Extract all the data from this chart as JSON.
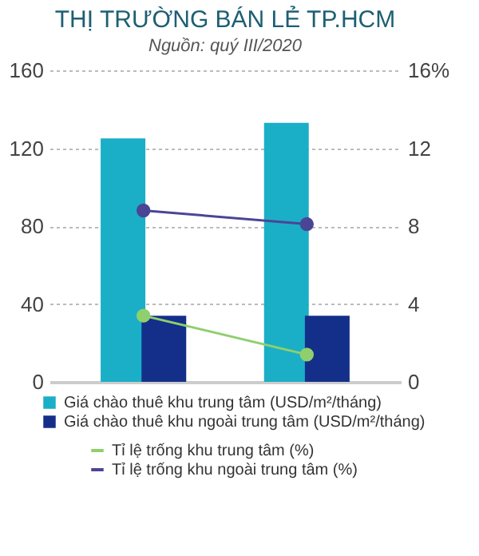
{
  "chart_data": {
    "type": "bar",
    "title": "THỊ TRƯỜNG BÁN LẺ TP.HCM",
    "subtitle": "Nguồn: quý III/2020",
    "categories": [
      null,
      null
    ],
    "series": [
      {
        "name": "Giá chào thuê khu trung tâm (USD/m²/tháng)",
        "color": "#1aafc6",
        "values": [
          125,
          133
        ]
      },
      {
        "name": "Giá chào thuê khu ngoài trung tâm (USD/m²/tháng)",
        "color": "#142f8a",
        "values": [
          34,
          34
        ]
      },
      {
        "name": "Tỉ lệ trống khu trung tâm (%)",
        "type": "line",
        "axis": "y2",
        "color": "#8fcf6e",
        "values": [
          3.4,
          1.4
        ]
      },
      {
        "name": "Tỉ lệ trống khu ngoài trung tâm (%)",
        "type": "line",
        "axis": "y2",
        "color": "#4b4596",
        "values": [
          8.8,
          8.1
        ]
      }
    ],
    "ylim": [
      0,
      160
    ],
    "yticks": [
      0,
      40,
      80,
      120,
      160
    ],
    "y2lim": [
      0,
      16
    ],
    "y2ticks": [
      0,
      4,
      8,
      12,
      {
        "value": 16,
        "label": "16%"
      }
    ],
    "grid": "y",
    "legend": "bottom",
    "marker": "circle",
    "tick_labels": "y"
  }
}
